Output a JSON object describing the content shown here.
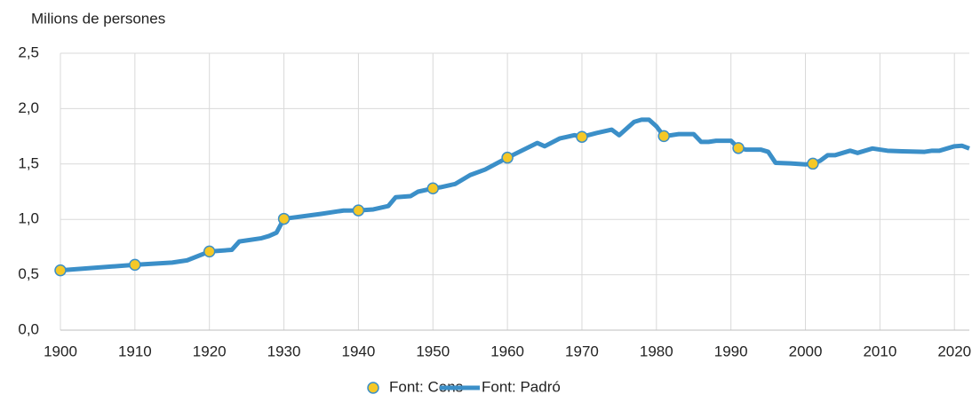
{
  "chart_data": {
    "type": "line",
    "y_axis_label": "Milions de persones",
    "xlim": [
      1900,
      2022
    ],
    "xticks": [
      1900,
      1910,
      1920,
      1930,
      1940,
      1950,
      1960,
      1970,
      1980,
      1990,
      2000,
      2010,
      2020
    ],
    "ylim": [
      0,
      2.5
    ],
    "yticks": [
      {
        "value": 0,
        "label": "0,0"
      },
      {
        "value": 0.5,
        "label": "0,5"
      },
      {
        "value": 1,
        "label": "1,0"
      },
      {
        "value": 1.5,
        "label": "1,5"
      },
      {
        "value": 2,
        "label": "2,0"
      },
      {
        "value": 2.5,
        "label": "2,5"
      }
    ],
    "grid": true,
    "legend": "bottom",
    "series": [
      {
        "name": "Font: Cens",
        "type": "scatter",
        "color": "#f5c827",
        "edge_color": "#3b8fc8",
        "x": [
          1900,
          1910,
          1920,
          1930,
          1940,
          1950,
          1960,
          1970,
          1981,
          1991,
          2001
        ],
        "values": [
          0.54,
          0.59,
          0.71,
          1.005,
          1.081,
          1.28,
          1.557,
          1.745,
          1.752,
          1.644,
          1.503
        ]
      },
      {
        "name": "Font: Padró",
        "type": "line",
        "color": "#3b8fc8",
        "x": [
          1900,
          1910,
          1915,
          1917,
          1920,
          1923,
          1924,
          1927,
          1928,
          1929,
          1930,
          1935,
          1938,
          1940,
          1942,
          1944,
          1945,
          1947,
          1948,
          1950,
          1951,
          1953,
          1955,
          1957,
          1960,
          1964,
          1965,
          1967,
          1969,
          1970,
          1972,
          1974,
          1975,
          1977,
          1978,
          1979,
          1980,
          1981,
          1982,
          1983,
          1985,
          1986,
          1987,
          1988,
          1990,
          1991,
          1992,
          1994,
          1995,
          1996,
          1998,
          2000,
          2001,
          2002,
          2003,
          2004,
          2006,
          2007,
          2009,
          2011,
          2013,
          2016,
          2017,
          2018,
          2020,
          2021,
          2022
        ],
        "values": [
          0.54,
          0.59,
          0.61,
          0.63,
          0.71,
          0.725,
          0.8,
          0.83,
          0.85,
          0.88,
          1.005,
          1.05,
          1.08,
          1.081,
          1.09,
          1.12,
          1.2,
          1.21,
          1.25,
          1.28,
          1.29,
          1.32,
          1.4,
          1.45,
          1.557,
          1.69,
          1.66,
          1.73,
          1.76,
          1.745,
          1.78,
          1.81,
          1.76,
          1.88,
          1.9,
          1.9,
          1.84,
          1.752,
          1.76,
          1.77,
          1.77,
          1.7,
          1.7,
          1.71,
          1.71,
          1.644,
          1.63,
          1.63,
          1.61,
          1.51,
          1.505,
          1.496,
          1.503,
          1.53,
          1.58,
          1.58,
          1.62,
          1.6,
          1.64,
          1.62,
          1.615,
          1.61,
          1.62,
          1.62,
          1.66,
          1.665,
          1.64
        ]
      }
    ]
  }
}
